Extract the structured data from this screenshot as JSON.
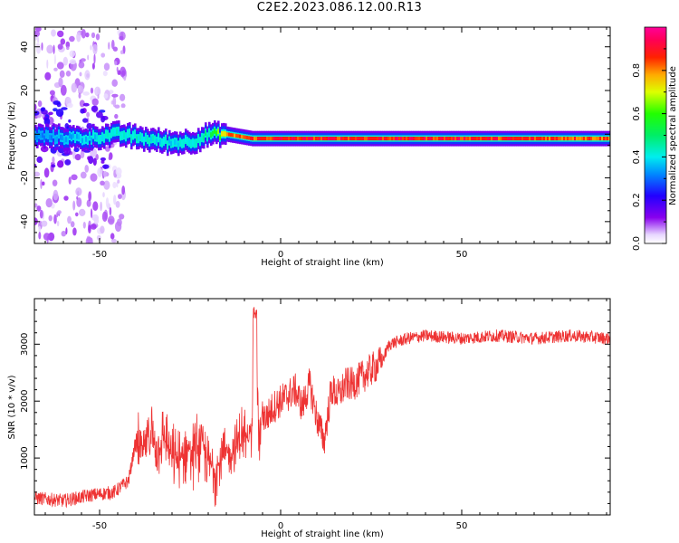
{
  "title": "C2E2.2023.086.12.00.R13",
  "chart_data": [
    {
      "type": "heatmap",
      "xlabel": "Height of straight line (km)",
      "ylabel": "Frequency (Hz)",
      "xlim": [
        -68,
        91
      ],
      "ylim": [
        -50,
        49
      ],
      "xticks": [
        -50,
        0,
        50
      ],
      "yticks": [
        -40,
        -20,
        0,
        20,
        40
      ],
      "colorbar": {
        "label": "Normalized spectral amplitude",
        "range": [
          0,
          1
        ],
        "ticks": [
          0.0,
          0.2,
          0.4,
          0.6,
          0.8
        ],
        "tick_labels": [
          "0.0",
          "0.2",
          "0.4",
          "0.6",
          "0.8"
        ],
        "colormap": "rainbow (white → purple → blue → cyan → green → yellow → red → magenta)"
      },
      "ridge": {
        "description": "Narrow high-amplitude band near 0 Hz; broad scatter of weak energy below -45 km",
        "points": [
          {
            "x": -65,
            "y": -1,
            "amp": 0.35
          },
          {
            "x": -55,
            "y": -2,
            "amp": 0.4
          },
          {
            "x": -45,
            "y": 0,
            "amp": 0.45
          },
          {
            "x": -38,
            "y": -2,
            "amp": 0.45
          },
          {
            "x": -30,
            "y": -4,
            "amp": 0.42
          },
          {
            "x": -24,
            "y": -3,
            "amp": 0.45
          },
          {
            "x": -20,
            "y": 0,
            "amp": 0.5
          },
          {
            "x": -15,
            "y": 0,
            "amp": 0.85
          },
          {
            "x": -8,
            "y": -2,
            "amp": 0.92
          },
          {
            "x": 0,
            "y": -2,
            "amp": 0.95
          },
          {
            "x": 20,
            "y": -2,
            "amp": 0.95
          },
          {
            "x": 50,
            "y": -2,
            "amp": 0.95
          },
          {
            "x": 90,
            "y": -2,
            "amp": 0.9
          }
        ]
      }
    },
    {
      "type": "line",
      "xlabel": "Height of straight line (km)",
      "ylabel": "SNR (10 * v/v)",
      "xlim": [
        -68,
        91
      ],
      "ylim": [
        0,
        3800
      ],
      "xticks": [
        -50,
        0,
        50
      ],
      "yticks": [
        1000,
        2000,
        3000
      ],
      "color": "#ee3333",
      "series": [
        {
          "x": [
            -68,
            -60,
            -52,
            -46,
            -42,
            -40,
            -38,
            -36,
            -34,
            -32,
            -30,
            -28,
            -26,
            -24,
            -22,
            -20,
            -18,
            -16,
            -14,
            -12,
            -10,
            -9,
            -8,
            -7,
            -6,
            -5,
            -4,
            -2,
            0,
            2,
            4,
            6,
            8,
            10,
            12,
            14,
            16,
            18,
            20,
            22,
            24,
            26,
            28,
            30,
            35,
            40,
            50,
            60,
            70,
            80,
            91
          ],
          "y": [
            300,
            250,
            350,
            400,
            600,
            1300,
            1100,
            1500,
            1200,
            1400,
            1000,
            900,
            1200,
            1100,
            1300,
            900,
            800,
            1000,
            1100,
            1300,
            1400,
            1300,
            1600,
            3700,
            1200,
            1800,
            1700,
            1900,
            2000,
            2100,
            2200,
            1900,
            2300,
            1700,
            1300,
            2200,
            2100,
            2300,
            2300,
            2400,
            2500,
            2600,
            2700,
            3000,
            3100,
            3150,
            3100,
            3150,
            3100,
            3150,
            3100
          ]
        }
      ]
    }
  ]
}
